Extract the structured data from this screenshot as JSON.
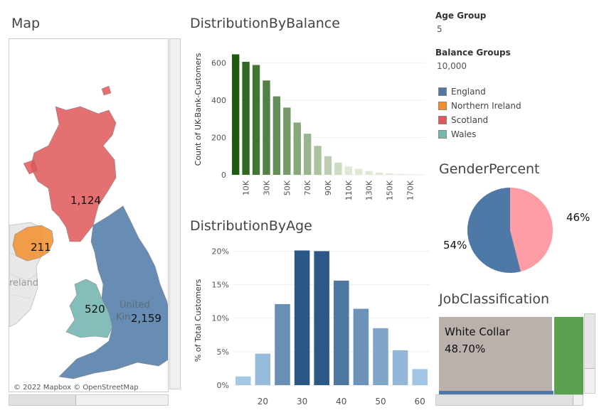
{
  "map": {
    "title": "Map",
    "attribution": "© 2022 Mapbox © OpenStreetMap",
    "labels": {
      "england": "2,159",
      "scotland": "1,124",
      "wales": "520",
      "northern_ireland": "211"
    },
    "place_labels": {
      "ireland": "reland",
      "united": "United",
      "kingdom": "Kin"
    }
  },
  "balance": {
    "title": "DistributionByBalance",
    "ylabel": "Count of UK-Bank-Customers"
  },
  "age": {
    "title": "DistributionByAge",
    "ylabel": "% of Total Customers"
  },
  "params": {
    "age_group_label": "Age Group",
    "age_group_value": "5",
    "balance_groups_label": "Balance Groups",
    "balance_groups_value": "10,000"
  },
  "legend": [
    {
      "label": "England",
      "color": "#4e79a7"
    },
    {
      "label": "Northern Ireland",
      "color": "#f28e2b"
    },
    {
      "label": "Scotland",
      "color": "#e15759"
    },
    {
      "label": "Wales",
      "color": "#76b7b2"
    }
  ],
  "gender": {
    "title": "GenderPercent",
    "male_label": "54%",
    "female_label": "46%",
    "male_color": "#4e79a7",
    "female_color": "#ff9da7"
  },
  "job": {
    "title": "JobClassification",
    "white_collar_label": "White Collar",
    "white_collar_pct": "48.70%",
    "white_collar_color": "#bab0ac",
    "other_color": "#59a14f"
  },
  "chart_data": [
    {
      "type": "bar",
      "title": "DistributionByBalance",
      "ylabel": "Count of UK-Bank-Customers",
      "x": [
        0,
        10000,
        20000,
        30000,
        40000,
        50000,
        60000,
        70000,
        80000,
        90000,
        100000,
        110000,
        120000,
        130000,
        140000,
        150000,
        160000,
        170000,
        180000
      ],
      "xticklabels": [
        "10K",
        "30K",
        "50K",
        "70K",
        "90K",
        "110K",
        "130K",
        "150K",
        "170K"
      ],
      "xtick_values": [
        10000,
        30000,
        50000,
        70000,
        90000,
        110000,
        130000,
        150000,
        170000
      ],
      "values": [
        645,
        605,
        588,
        505,
        420,
        360,
        280,
        220,
        155,
        100,
        65,
        45,
        32,
        20,
        12,
        8,
        5,
        3,
        2
      ],
      "ylim": [
        0,
        700
      ],
      "yticks": [
        0,
        200,
        400,
        600
      ]
    },
    {
      "type": "bar",
      "title": "DistributionByAge",
      "ylabel": "% of Total Customers",
      "x": [
        15,
        20,
        25,
        30,
        35,
        40,
        45,
        50,
        55,
        60
      ],
      "xticklabels": [
        "20",
        "30",
        "40",
        "50",
        "60"
      ],
      "xtick_values": [
        20,
        30,
        40,
        50,
        60
      ],
      "values": [
        1.3,
        4.7,
        12.1,
        20.1,
        20.0,
        15.6,
        11.4,
        8.5,
        5.2,
        2.4
      ],
      "ylim": [
        0,
        21
      ],
      "yticks": [
        0,
        5,
        10,
        15,
        20
      ],
      "yticklabels": [
        "0%",
        "5%",
        "10%",
        "15%",
        "20%"
      ]
    },
    {
      "type": "pie",
      "title": "GenderPercent",
      "slices": [
        {
          "label": "54%",
          "value": 54
        },
        {
          "label": "46%",
          "value": 46
        }
      ]
    },
    {
      "type": "bar",
      "title": "JobClassification",
      "categories": [
        "White Collar"
      ],
      "values": [
        48.7
      ]
    }
  ]
}
